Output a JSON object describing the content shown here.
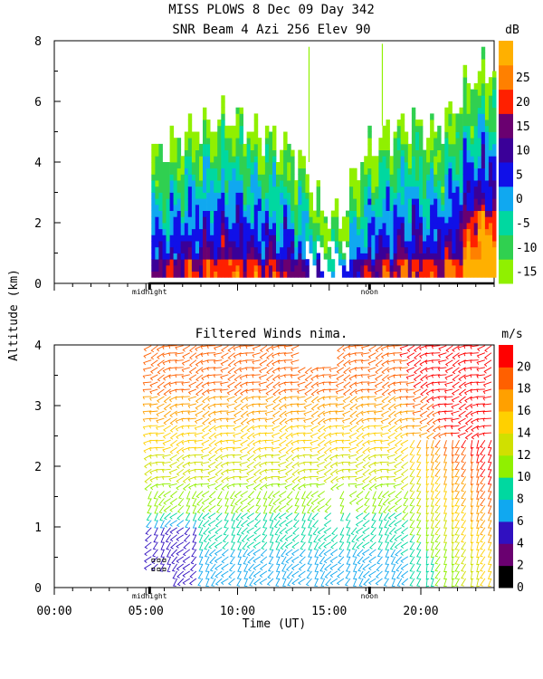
{
  "header": {
    "line1": "MISS PLOWS    8 Dec 09 Day 342",
    "line2": "SNR Beam 4 Azi 256 Elev 90"
  },
  "chart_data": [
    {
      "type": "heatmap",
      "title": "SNR Beam 4 Azi 256 Elev 90",
      "xlabel": "Time (UT)",
      "ylabel": "Altitude (km)",
      "xlim": [
        0,
        24
      ],
      "ylim": [
        0,
        8
      ],
      "yticks": [
        "0",
        "2",
        "4",
        "6",
        "8"
      ],
      "colorbar": {
        "unit": "dB",
        "ticks": [
          "-15",
          "-10",
          "-5",
          "0",
          "5",
          "10",
          "15",
          "20",
          "25"
        ],
        "colors": [
          "#90f000",
          "#30d050",
          "#00d8a0",
          "#10a8f0",
          "#1010e8",
          "#3a0098",
          "#6a0070",
          "#ff2000",
          "#ff8000",
          "#ffb000"
        ]
      },
      "markers": {
        "midnight_label": "midnight",
        "noon_label": "noon",
        "midnight_hour": 5.2,
        "noon_hour": 17.2
      },
      "echo_top_km": {
        "hours": [
          5.5,
          6.5,
          7.5,
          8.5,
          9.5,
          10.5,
          11.5,
          12.5,
          13.5,
          14.5,
          15.5,
          16.5,
          17.5,
          18.5,
          19.5,
          20.5,
          21.5,
          22.5,
          23.5
        ],
        "values": [
          4.2,
          4.6,
          5.0,
          5.2,
          5.4,
          5.0,
          4.8,
          4.5,
          3.8,
          2.2,
          2.0,
          3.8,
          4.6,
          5.0,
          5.2,
          4.8,
          5.4,
          6.5,
          7.0
        ]
      }
    },
    {
      "type": "scatter",
      "title": "Filtered Winds nima.",
      "xlabel": "Time (UT)",
      "ylabel": "Altitude (km)",
      "xlim": [
        0,
        24
      ],
      "ylim": [
        0,
        4
      ],
      "yticks": [
        "0",
        "1",
        "2",
        "3",
        "4"
      ],
      "xticks": [
        "00:00",
        "05:00",
        "10:00",
        "15:00",
        "20:00"
      ],
      "colorbar": {
        "unit": "m/s",
        "ticks": [
          "0",
          "2",
          "4",
          "6",
          "8",
          "10",
          "12",
          "14",
          "16",
          "18",
          "20"
        ],
        "colors": [
          "#000000",
          "#6a0070",
          "#3010c0",
          "#10a8f0",
          "#00d8a0",
          "#90f000",
          "#d0e000",
          "#ffd000",
          "#ffa000",
          "#ff6000",
          "#ff0000"
        ]
      },
      "markers": {
        "midnight_label": "midnight",
        "noon_label": "noon"
      },
      "speed_profile_mps": {
        "altitudes_km": [
          0.5,
          1.0,
          1.5,
          2.0,
          2.5,
          3.0,
          3.5,
          4.0
        ],
        "values": [
          7,
          9,
          11,
          13,
          15,
          17,
          19,
          20
        ]
      }
    }
  ]
}
